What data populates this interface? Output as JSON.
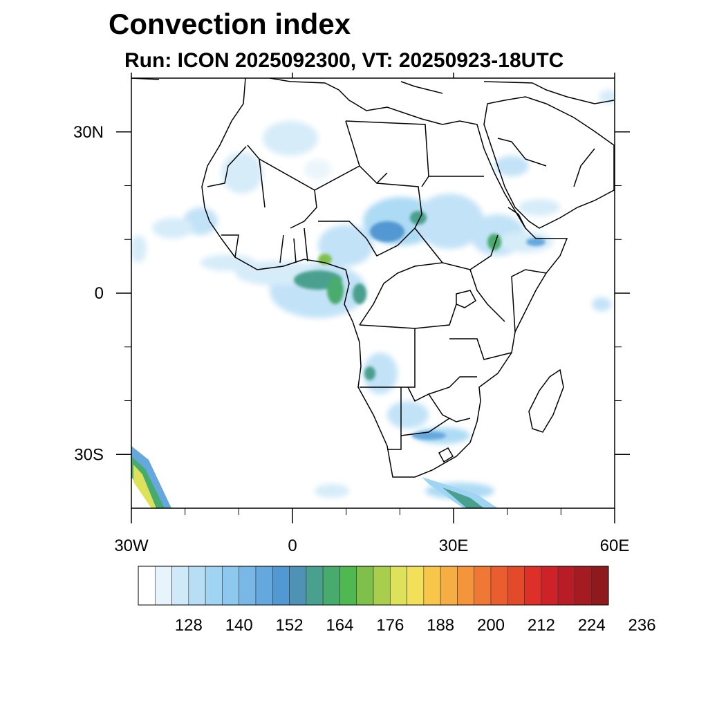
{
  "title": "Convection index",
  "subtitle": "Run: ICON 2025092300,  VT: 20250923-18UTC",
  "map": {
    "lon_range": [
      -30,
      60
    ],
    "lat_range": [
      -40,
      40
    ],
    "lon_ticks": [
      {
        "value": -30,
        "label": "30W"
      },
      {
        "value": 0,
        "label": "0"
      },
      {
        "value": 30,
        "label": "30E"
      },
      {
        "value": 60,
        "label": "60E"
      }
    ],
    "lat_ticks": [
      {
        "value": 30,
        "label": "30N"
      },
      {
        "value": 0,
        "label": "0"
      },
      {
        "value": -30,
        "label": "30S"
      }
    ],
    "minor_lon": [
      -20,
      -10,
      10,
      20,
      40,
      50
    ],
    "minor_lat": [
      20,
      10,
      -10,
      -20
    ]
  },
  "colorbar": {
    "colors": [
      "#ffffff",
      "#e8f4fb",
      "#cfe9f8",
      "#b8def6",
      "#9fd4f3",
      "#8dc9ee",
      "#79b8e6",
      "#65a8de",
      "#5298d2",
      "#4e93b5",
      "#4aa08e",
      "#48ab6e",
      "#4fb850",
      "#7ec04a",
      "#a9cd4c",
      "#dde25a",
      "#f3e05a",
      "#f8c74a",
      "#f6ae44",
      "#f4953c",
      "#ef7834",
      "#ea5d2e",
      "#e34a2a",
      "#dc3028",
      "#cc2228",
      "#b81d25",
      "#a41b22",
      "#8e1a1e"
    ],
    "tick_labels": [
      "128",
      "140",
      "152",
      "164",
      "176",
      "188",
      "200",
      "212",
      "224",
      "236"
    ]
  }
}
